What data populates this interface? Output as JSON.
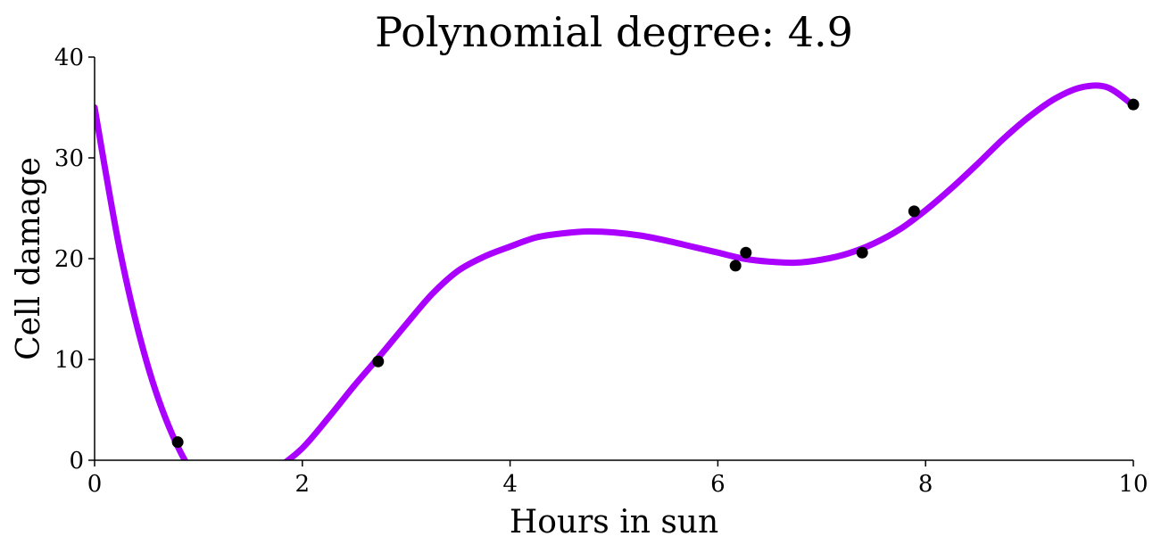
{
  "chart_data": {
    "type": "scatter",
    "title": "Polynomial degree: 4.9",
    "xlabel": "Hours in sun",
    "ylabel": "Cell damage",
    "xlim": [
      0,
      10
    ],
    "ylim": [
      0,
      40
    ],
    "xticks": [
      0,
      2,
      4,
      6,
      8,
      10
    ],
    "yticks": [
      0,
      10,
      20,
      30,
      40
    ],
    "grid": false,
    "points": {
      "color": "#000000",
      "x": [
        0.8,
        2.73,
        6.17,
        6.27,
        7.39,
        7.89,
        10.0
      ],
      "y": [
        1.8,
        9.8,
        19.3,
        20.6,
        20.6,
        24.7,
        35.3
      ]
    },
    "fit_curve": {
      "color": "#aa00ff",
      "x": [
        0,
        0.25,
        0.5,
        0.75,
        1.0,
        1.25,
        1.5,
        1.75,
        2.0,
        2.25,
        2.5,
        2.75,
        3.0,
        3.25,
        3.5,
        3.75,
        4.0,
        4.25,
        4.5,
        4.75,
        5.0,
        5.25,
        5.5,
        5.75,
        6.0,
        6.25,
        6.5,
        6.75,
        7.0,
        7.25,
        7.5,
        7.75,
        8.0,
        8.25,
        8.5,
        8.75,
        9.0,
        9.25,
        9.5,
        9.75,
        10.0
      ],
      "y": [
        35.0,
        20.5,
        9.8,
        2.5,
        -2.0,
        -3.5,
        -2.8,
        -0.9,
        1.2,
        4.2,
        7.4,
        10.4,
        13.5,
        16.5,
        18.8,
        20.2,
        21.2,
        22.1,
        22.5,
        22.7,
        22.6,
        22.3,
        21.8,
        21.2,
        20.6,
        20.0,
        19.7,
        19.6,
        19.9,
        20.5,
        21.5,
        22.9,
        24.8,
        27.0,
        29.4,
        31.9,
        34.1,
        35.9,
        37.0,
        37.0,
        35.2
      ]
    }
  }
}
